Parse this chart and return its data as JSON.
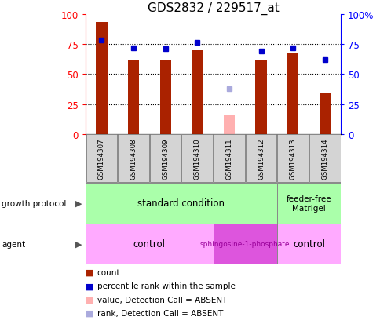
{
  "title": "GDS2832 / 229517_at",
  "samples": [
    "GSM194307",
    "GSM194308",
    "GSM194309",
    "GSM194310",
    "GSM194311",
    "GSM194312",
    "GSM194313",
    "GSM194314"
  ],
  "counts": [
    93,
    62,
    62,
    70,
    null,
    62,
    67,
    34
  ],
  "counts_absent": [
    null,
    null,
    null,
    null,
    16,
    null,
    null,
    null
  ],
  "percentile_ranks": [
    78,
    72,
    71,
    76,
    null,
    69,
    72,
    62
  ],
  "percentile_ranks_absent": [
    null,
    null,
    null,
    null,
    38,
    null,
    null,
    null
  ],
  "bar_color": "#aa2200",
  "bar_absent_color": "#ffb0b0",
  "dot_color": "#0000cc",
  "dot_absent_color": "#aaaadd",
  "bar_width": 0.35,
  "ylim": [
    0,
    100
  ],
  "yticks": [
    0,
    25,
    50,
    75,
    100
  ],
  "grid_lines": [
    25,
    50,
    75
  ],
  "growth_protocol_label": "growth protocol",
  "agent_label": "agent",
  "standard_label": "standard condition",
  "feeder_free_label": "feeder-free\nMatrigel",
  "control1_label": "control",
  "sphingosine_label": "sphingosine-1-phosphate",
  "control2_label": "control",
  "color_standard": "#aaffaa",
  "color_feeder": "#aaffaa",
  "color_control": "#ffaaff",
  "color_sphingosine": "#dd55dd",
  "color_sample_box": "#d4d4d4",
  "standard_range": [
    0,
    6
  ],
  "feeder_range": [
    6,
    8
  ],
  "control1_range": [
    0,
    4
  ],
  "sphingosine_range": [
    4,
    6
  ],
  "control2_range": [
    6,
    8
  ],
  "legend": [
    {
      "color": "#aa2200",
      "label": "count"
    },
    {
      "color": "#0000cc",
      "label": "percentile rank within the sample"
    },
    {
      "color": "#ffb0b0",
      "label": "value, Detection Call = ABSENT"
    },
    {
      "color": "#aaaadd",
      "label": "rank, Detection Call = ABSENT"
    }
  ]
}
